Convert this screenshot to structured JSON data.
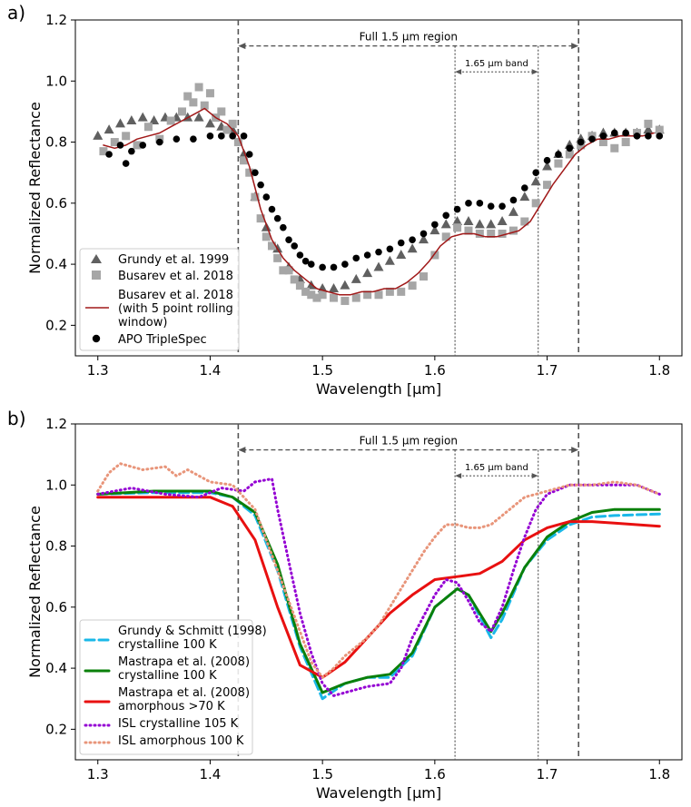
{
  "chart_data": [
    {
      "panel": "a)",
      "type": "scatter",
      "xlabel": "Wavelength [μm]",
      "ylabel": "Normalized Reflectance",
      "xlim": [
        1.28,
        1.82
      ],
      "ylim": [
        0.1,
        1.2
      ],
      "xticks": [
        "1.3",
        "1.4",
        "1.5",
        "1.6",
        "1.7",
        "1.8"
      ],
      "yticks": [
        "0.2",
        "0.4",
        "0.6",
        "0.8",
        "1.0",
        "1.2"
      ],
      "xtick_values": [
        1.3,
        1.4,
        1.5,
        1.6,
        1.7,
        1.8
      ],
      "ytick_values": [
        0.2,
        0.4,
        0.6,
        0.8,
        1.0,
        1.2
      ],
      "annotations": {
        "full_label": "Full 1.5 μm region",
        "band_label": "1.65 μm band",
        "full_range": [
          1.425,
          1.728
        ],
        "band_range": [
          1.618,
          1.692
        ],
        "full_y": 1.115,
        "band_y": 1.03
      },
      "legend": [
        "Grundy et al. 1999",
        "Busarev et al. 2018",
        "Busarev et al. 2018\n(with 5 point rolling\nwindow)",
        "APO TripleSpec"
      ],
      "legend_position": "lower-left",
      "series": [
        {
          "name": "Grundy et al. 1999",
          "style": "triangle",
          "color": "#606060",
          "x": [
            1.3,
            1.31,
            1.32,
            1.33,
            1.34,
            1.35,
            1.36,
            1.37,
            1.38,
            1.39,
            1.4,
            1.41,
            1.42,
            1.43,
            1.44,
            1.45,
            1.46,
            1.47,
            1.48,
            1.49,
            1.5,
            1.51,
            1.52,
            1.53,
            1.54,
            1.55,
            1.56,
            1.57,
            1.58,
            1.59,
            1.6,
            1.61,
            1.62,
            1.63,
            1.64,
            1.65,
            1.66,
            1.67,
            1.68,
            1.69,
            1.7,
            1.71,
            1.72,
            1.73,
            1.74,
            1.75,
            1.76,
            1.77,
            1.78,
            1.79,
            1.8
          ],
          "y": [
            0.82,
            0.84,
            0.86,
            0.87,
            0.88,
            0.87,
            0.88,
            0.88,
            0.88,
            0.88,
            0.86,
            0.85,
            0.84,
            0.76,
            0.62,
            0.52,
            0.45,
            0.39,
            0.35,
            0.33,
            0.32,
            0.32,
            0.33,
            0.35,
            0.37,
            0.39,
            0.41,
            0.43,
            0.45,
            0.48,
            0.51,
            0.53,
            0.54,
            0.54,
            0.53,
            0.53,
            0.54,
            0.57,
            0.62,
            0.67,
            0.72,
            0.76,
            0.79,
            0.81,
            0.82,
            0.83,
            0.83,
            0.83,
            0.83,
            0.84,
            0.84
          ]
        },
        {
          "name": "Busarev et al. 2018",
          "style": "square",
          "color": "#a6a6a6",
          "x": [
            1.305,
            1.315,
            1.325,
            1.335,
            1.345,
            1.355,
            1.365,
            1.375,
            1.38,
            1.385,
            1.39,
            1.395,
            1.4,
            1.405,
            1.41,
            1.415,
            1.42,
            1.425,
            1.43,
            1.435,
            1.44,
            1.445,
            1.45,
            1.455,
            1.46,
            1.465,
            1.47,
            1.475,
            1.48,
            1.485,
            1.49,
            1.495,
            1.5,
            1.51,
            1.52,
            1.53,
            1.54,
            1.55,
            1.56,
            1.57,
            1.58,
            1.59,
            1.6,
            1.61,
            1.62,
            1.63,
            1.64,
            1.65,
            1.66,
            1.67,
            1.68,
            1.69,
            1.7,
            1.71,
            1.72,
            1.73,
            1.74,
            1.75,
            1.76,
            1.77,
            1.78,
            1.79,
            1.8
          ],
          "y": [
            0.77,
            0.8,
            0.82,
            0.79,
            0.85,
            0.81,
            0.87,
            0.9,
            0.95,
            0.93,
            0.98,
            0.92,
            0.96,
            0.88,
            0.9,
            0.84,
            0.86,
            0.8,
            0.74,
            0.7,
            0.62,
            0.55,
            0.49,
            0.46,
            0.42,
            0.38,
            0.38,
            0.35,
            0.33,
            0.31,
            0.3,
            0.29,
            0.3,
            0.29,
            0.28,
            0.29,
            0.3,
            0.3,
            0.31,
            0.31,
            0.33,
            0.36,
            0.43,
            0.49,
            0.52,
            0.51,
            0.5,
            0.5,
            0.5,
            0.51,
            0.54,
            0.6,
            0.66,
            0.73,
            0.76,
            0.79,
            0.82,
            0.8,
            0.78,
            0.8,
            0.83,
            0.86,
            0.84
          ]
        },
        {
          "name": "Busarev et al. 2018 (with 5 point rolling window)",
          "style": "line",
          "color": "#a01818",
          "x": [
            1.305,
            1.315,
            1.325,
            1.335,
            1.345,
            1.355,
            1.365,
            1.375,
            1.385,
            1.395,
            1.405,
            1.415,
            1.425,
            1.435,
            1.445,
            1.455,
            1.465,
            1.475,
            1.485,
            1.495,
            1.505,
            1.515,
            1.525,
            1.535,
            1.545,
            1.555,
            1.565,
            1.575,
            1.585,
            1.595,
            1.605,
            1.615,
            1.625,
            1.635,
            1.645,
            1.655,
            1.665,
            1.675,
            1.685,
            1.695,
            1.705,
            1.715,
            1.725,
            1.735,
            1.745,
            1.755,
            1.765,
            1.775,
            1.785,
            1.795
          ],
          "y": [
            0.79,
            0.78,
            0.79,
            0.81,
            0.82,
            0.83,
            0.85,
            0.87,
            0.89,
            0.91,
            0.88,
            0.86,
            0.82,
            0.72,
            0.58,
            0.48,
            0.42,
            0.38,
            0.35,
            0.32,
            0.31,
            0.3,
            0.3,
            0.31,
            0.31,
            0.32,
            0.32,
            0.34,
            0.37,
            0.41,
            0.46,
            0.49,
            0.5,
            0.5,
            0.49,
            0.49,
            0.5,
            0.51,
            0.54,
            0.6,
            0.66,
            0.71,
            0.76,
            0.79,
            0.81,
            0.81,
            0.82,
            0.82,
            0.82,
            0.83
          ]
        },
        {
          "name": "APO TripleSpec",
          "style": "circle",
          "color": "#000000",
          "x": [
            1.31,
            1.32,
            1.325,
            1.33,
            1.34,
            1.355,
            1.37,
            1.385,
            1.4,
            1.41,
            1.42,
            1.43,
            1.435,
            1.44,
            1.445,
            1.45,
            1.455,
            1.46,
            1.465,
            1.47,
            1.475,
            1.48,
            1.485,
            1.49,
            1.5,
            1.51,
            1.52,
            1.53,
            1.54,
            1.55,
            1.56,
            1.57,
            1.58,
            1.59,
            1.6,
            1.61,
            1.62,
            1.63,
            1.64,
            1.65,
            1.66,
            1.67,
            1.68,
            1.69,
            1.7,
            1.71,
            1.72,
            1.73,
            1.74,
            1.75,
            1.76,
            1.77,
            1.78,
            1.79,
            1.8
          ],
          "y": [
            0.76,
            0.79,
            0.73,
            0.77,
            0.79,
            0.8,
            0.81,
            0.81,
            0.82,
            0.82,
            0.82,
            0.82,
            0.76,
            0.7,
            0.66,
            0.62,
            0.58,
            0.55,
            0.52,
            0.48,
            0.46,
            0.43,
            0.41,
            0.4,
            0.39,
            0.39,
            0.4,
            0.42,
            0.43,
            0.44,
            0.45,
            0.47,
            0.48,
            0.5,
            0.53,
            0.56,
            0.58,
            0.6,
            0.6,
            0.59,
            0.59,
            0.61,
            0.65,
            0.7,
            0.74,
            0.76,
            0.78,
            0.8,
            0.81,
            0.82,
            0.83,
            0.83,
            0.82,
            0.82,
            0.82
          ]
        }
      ]
    },
    {
      "panel": "b)",
      "type": "line",
      "xlabel": "Wavelength [μm]",
      "ylabel": "Normalized Reflectance",
      "xlim": [
        1.28,
        1.82
      ],
      "ylim": [
        0.1,
        1.2
      ],
      "xticks": [
        "1.3",
        "1.4",
        "1.5",
        "1.6",
        "1.7",
        "1.8"
      ],
      "yticks": [
        "0.2",
        "0.4",
        "0.6",
        "0.8",
        "1.0",
        "1.2"
      ],
      "xtick_values": [
        1.3,
        1.4,
        1.5,
        1.6,
        1.7,
        1.8
      ],
      "ytick_values": [
        0.2,
        0.4,
        0.6,
        0.8,
        1.0,
        1.2
      ],
      "annotations": {
        "full_label": "Full 1.5 μm region",
        "band_label": "1.65 μm band",
        "full_range": [
          1.425,
          1.728
        ],
        "band_range": [
          1.618,
          1.692
        ],
        "full_y": 1.115,
        "band_y": 1.03
      },
      "legend": [
        "Grundy & Schmitt (1998)\ncrystalline 100 K",
        "Mastrapa et al. (2008)\ncrystalline 100 K",
        "Mastrapa et al. (2008)\namorphous >70 K",
        "ISL crystalline 105 K",
        "ISL amorphous 100 K"
      ],
      "legend_position": "lower-left",
      "series": [
        {
          "name": "Grundy & Schmitt (1998) crystalline 100 K",
          "style": "dashed",
          "color": "#1ab8e8",
          "x": [
            1.3,
            1.35,
            1.4,
            1.42,
            1.44,
            1.46,
            1.48,
            1.5,
            1.52,
            1.54,
            1.56,
            1.58,
            1.6,
            1.62,
            1.63,
            1.64,
            1.65,
            1.66,
            1.68,
            1.7,
            1.72,
            1.74,
            1.76,
            1.8
          ],
          "y": [
            0.97,
            0.975,
            0.975,
            0.96,
            0.9,
            0.72,
            0.47,
            0.3,
            0.35,
            0.37,
            0.37,
            0.44,
            0.6,
            0.66,
            0.64,
            0.57,
            0.5,
            0.56,
            0.73,
            0.82,
            0.87,
            0.895,
            0.9,
            0.905
          ]
        },
        {
          "name": "Mastrapa et al. (2008) crystalline 100 K",
          "style": "solid",
          "color": "#0a800a",
          "x": [
            1.3,
            1.35,
            1.4,
            1.42,
            1.44,
            1.46,
            1.48,
            1.5,
            1.52,
            1.54,
            1.56,
            1.58,
            1.6,
            1.62,
            1.63,
            1.64,
            1.65,
            1.66,
            1.68,
            1.7,
            1.72,
            1.74,
            1.76,
            1.8
          ],
          "y": [
            0.97,
            0.98,
            0.98,
            0.96,
            0.91,
            0.74,
            0.48,
            0.32,
            0.35,
            0.37,
            0.38,
            0.45,
            0.6,
            0.66,
            0.64,
            0.58,
            0.52,
            0.58,
            0.73,
            0.83,
            0.88,
            0.91,
            0.92,
            0.92
          ]
        },
        {
          "name": "Mastrapa et al. (2008) amorphous >70 K",
          "style": "solid",
          "color": "#e81010",
          "x": [
            1.3,
            1.35,
            1.4,
            1.42,
            1.44,
            1.46,
            1.48,
            1.5,
            1.52,
            1.54,
            1.56,
            1.58,
            1.6,
            1.62,
            1.64,
            1.66,
            1.68,
            1.7,
            1.72,
            1.74,
            1.76,
            1.8
          ],
          "y": [
            0.96,
            0.96,
            0.96,
            0.93,
            0.82,
            0.6,
            0.41,
            0.37,
            0.42,
            0.5,
            0.58,
            0.64,
            0.69,
            0.7,
            0.71,
            0.75,
            0.82,
            0.86,
            0.88,
            0.88,
            0.875,
            0.865
          ]
        },
        {
          "name": "ISL crystalline 105 K",
          "style": "dotted",
          "color": "#9400d3",
          "x": [
            1.3,
            1.33,
            1.36,
            1.39,
            1.41,
            1.43,
            1.44,
            1.455,
            1.46,
            1.47,
            1.48,
            1.49,
            1.5,
            1.51,
            1.52,
            1.54,
            1.56,
            1.57,
            1.58,
            1.6,
            1.61,
            1.62,
            1.63,
            1.64,
            1.65,
            1.66,
            1.67,
            1.68,
            1.69,
            1.7,
            1.72,
            1.74,
            1.76,
            1.78,
            1.8
          ],
          "y": [
            0.97,
            0.99,
            0.97,
            0.96,
            0.99,
            0.98,
            1.01,
            1.02,
            0.92,
            0.75,
            0.58,
            0.45,
            0.35,
            0.31,
            0.32,
            0.34,
            0.35,
            0.4,
            0.5,
            0.64,
            0.69,
            0.68,
            0.62,
            0.55,
            0.52,
            0.6,
            0.72,
            0.83,
            0.92,
            0.97,
            1.0,
            1.0,
            1.0,
            1.0,
            0.97
          ]
        },
        {
          "name": "ISL amorphous 100 K",
          "style": "dotted",
          "color": "#e8957a",
          "x": [
            1.3,
            1.31,
            1.32,
            1.34,
            1.36,
            1.37,
            1.38,
            1.4,
            1.42,
            1.44,
            1.46,
            1.48,
            1.49,
            1.5,
            1.51,
            1.52,
            1.53,
            1.54,
            1.55,
            1.56,
            1.57,
            1.58,
            1.59,
            1.6,
            1.61,
            1.62,
            1.63,
            1.64,
            1.65,
            1.66,
            1.67,
            1.68,
            1.69,
            1.7,
            1.72,
            1.74,
            1.76,
            1.78,
            1.8
          ],
          "y": [
            0.98,
            1.04,
            1.07,
            1.05,
            1.06,
            1.03,
            1.05,
            1.01,
            1.0,
            0.92,
            0.72,
            0.52,
            0.42,
            0.37,
            0.4,
            0.44,
            0.47,
            0.5,
            0.54,
            0.6,
            0.66,
            0.72,
            0.78,
            0.83,
            0.87,
            0.87,
            0.86,
            0.86,
            0.87,
            0.9,
            0.93,
            0.96,
            0.97,
            0.98,
            1.0,
            1.0,
            1.01,
            1.0,
            0.97
          ]
        }
      ]
    }
  ]
}
